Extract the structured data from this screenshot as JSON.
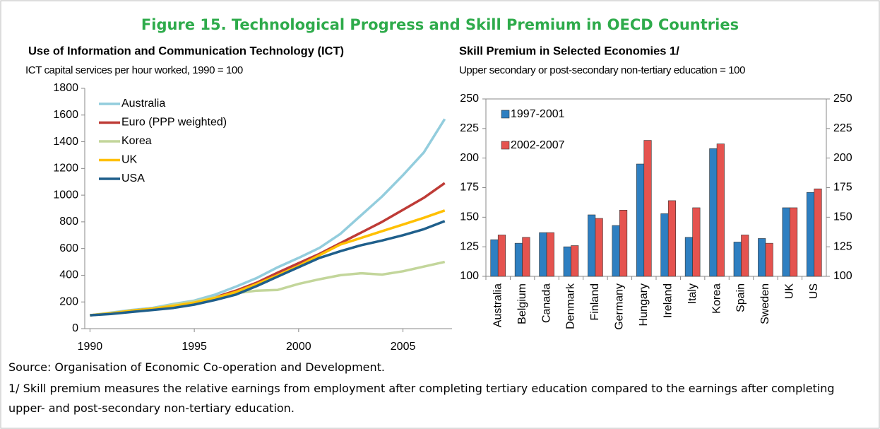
{
  "title": "Figure 15. Technological Progress and Skill Premium in OECD Countries",
  "chart_data": [
    {
      "type": "line",
      "title": "Use of Information and Communication Technology (ICT)",
      "subtitle": "ICT capital services per hour worked, 1990 = 100",
      "x": [
        1990,
        1991,
        1992,
        1993,
        1994,
        1995,
        1996,
        1997,
        1998,
        1999,
        2000,
        2001,
        2002,
        2003,
        2004,
        2005,
        2006,
        2007
      ],
      "series": [
        {
          "name": "Australia",
          "color": "#93cddd",
          "values": [
            100,
            120,
            140,
            155,
            185,
            210,
            255,
            315,
            380,
            460,
            530,
            605,
            710,
            850,
            990,
            1150,
            1320,
            1570
          ]
        },
        {
          "name": "Euro (PPP weighted)",
          "color": "#be3b36",
          "values": [
            100,
            115,
            135,
            150,
            175,
            200,
            235,
            285,
            345,
            420,
            490,
            560,
            640,
            720,
            800,
            890,
            980,
            1090
          ]
        },
        {
          "name": "Korea",
          "color": "#c3d69b",
          "values": [
            100,
            118,
            135,
            150,
            180,
            205,
            235,
            265,
            285,
            290,
            335,
            370,
            400,
            415,
            405,
            430,
            465,
            500
          ]
        },
        {
          "name": "UK",
          "color": "#ffc000",
          "values": [
            100,
            115,
            135,
            150,
            170,
            195,
            230,
            275,
            335,
            400,
            470,
            550,
            630,
            680,
            730,
            780,
            830,
            885
          ]
        },
        {
          "name": "USA",
          "color": "#1f5f8b",
          "values": [
            100,
            110,
            125,
            140,
            155,
            180,
            215,
            255,
            320,
            390,
            460,
            530,
            580,
            625,
            660,
            700,
            745,
            805
          ]
        }
      ],
      "xlim": [
        1989.75,
        2007.35
      ],
      "xticks": [
        1990,
        1995,
        2000,
        2005
      ],
      "ylim": [
        0,
        1800
      ],
      "yticks": [
        0,
        200,
        400,
        600,
        800,
        1000,
        1200,
        1400,
        1600,
        1800
      ],
      "grid": false,
      "legend": "upper left"
    },
    {
      "type": "bar",
      "title": "Skill Premium in Selected Economies 1/",
      "subtitle": "Upper secondary or post-secondary non-tertiary education = 100",
      "categories": [
        "Australia",
        "Belgium",
        "Canada",
        "Denmark",
        "Finland",
        "Germany",
        "Hungary",
        "Ireland",
        "Italy",
        "Korea",
        "Spain",
        "Sweden",
        "UK",
        "US"
      ],
      "series": [
        {
          "name": "1997-2001",
          "color": "#2e7fc1",
          "values": [
            131,
            128,
            137,
            125,
            152,
            143,
            195,
            153,
            133,
            208,
            129,
            132,
            158,
            171
          ]
        },
        {
          "name": "2002-2007",
          "color": "#e5534f",
          "values": [
            135,
            133,
            137,
            126,
            149,
            156,
            215,
            164,
            158,
            212,
            135,
            128,
            158,
            174
          ]
        }
      ],
      "ylim": [
        100,
        250
      ],
      "yticks": [
        100,
        125,
        150,
        175,
        200,
        225,
        250
      ],
      "y2lim": [
        100,
        250
      ],
      "y2ticks": [
        100,
        125,
        150,
        175,
        200,
        225,
        250
      ],
      "grid": false,
      "legend": "upper left"
    }
  ],
  "source": "Source: Organisation of Economic Co-operation and Development.",
  "note": "1/ Skill premium measures the relative earnings from employment after completing tertiary education compared to the earnings after completing upper- and post-secondary non-tertiary education."
}
